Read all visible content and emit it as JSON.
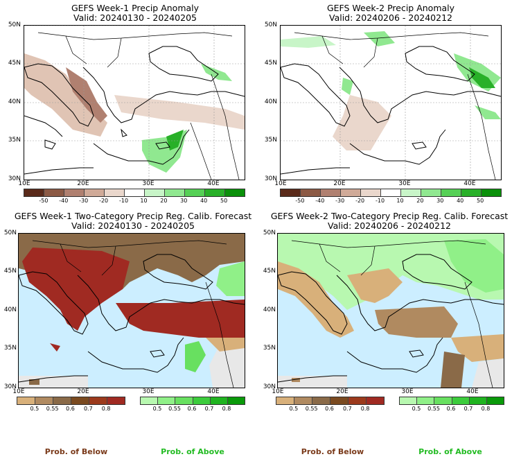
{
  "panels": [
    {
      "title": "GEFS Week-1 Precip Anomaly",
      "valid": "Valid: 20240130 - 20240205"
    },
    {
      "title": "GEFS Week-2 Precip Anomaly",
      "valid": "Valid: 20240206 - 20240212"
    },
    {
      "title": "GEFS Week-1 Two-Category Precip Reg. Calib. Forecast",
      "valid": "Valid: 20240130 - 20240205"
    },
    {
      "title": "GEFS Week-2 Two-Category Precip Reg. Calib. Forecast",
      "valid": "Valid: 20240206 - 20240212"
    }
  ],
  "lat_labels": [
    "50N",
    "45N",
    "40N",
    "35N",
    "30N"
  ],
  "lon_labels": [
    "10E",
    "20E",
    "30E",
    "40E"
  ],
  "anomaly_colorbar": {
    "ticks": [
      "-50",
      "-40",
      "-30",
      "-20",
      "-10",
      "10",
      "20",
      "30",
      "40",
      "50"
    ],
    "colors": [
      "#5a2a1a",
      "#8c5a45",
      "#b08070",
      "#d0aa98",
      "#ead7cc",
      "#ffffff",
      "#c8f5c8",
      "#90e890",
      "#55d055",
      "#28b028",
      "#0a900a"
    ]
  },
  "prob_below_colorbar": {
    "ticks": [
      "0.5",
      "0.55",
      "0.6",
      "0.7",
      "0.8"
    ],
    "colors": [
      "#d8b07a",
      "#b08a60",
      "#8a6a48",
      "#7a4a20",
      "#9c3a1c",
      "#a02a22"
    ]
  },
  "prob_above_colorbar": {
    "ticks": [
      "0.5",
      "0.55",
      "0.6",
      "0.7",
      "0.8"
    ],
    "colors": [
      "#b8f8b0",
      "#90f088",
      "#68e060",
      "#3ccc3c",
      "#20b420",
      "#0a9a0a"
    ]
  },
  "labels": {
    "below": "Prob. of Below",
    "above": "Prob. of Above"
  },
  "colors": {
    "below_text": "#7a3a1a",
    "above_text": "#22bb22",
    "water": "#cceeff",
    "land_gray": "#e8e8e8",
    "grid": "#aaaaaa"
  }
}
